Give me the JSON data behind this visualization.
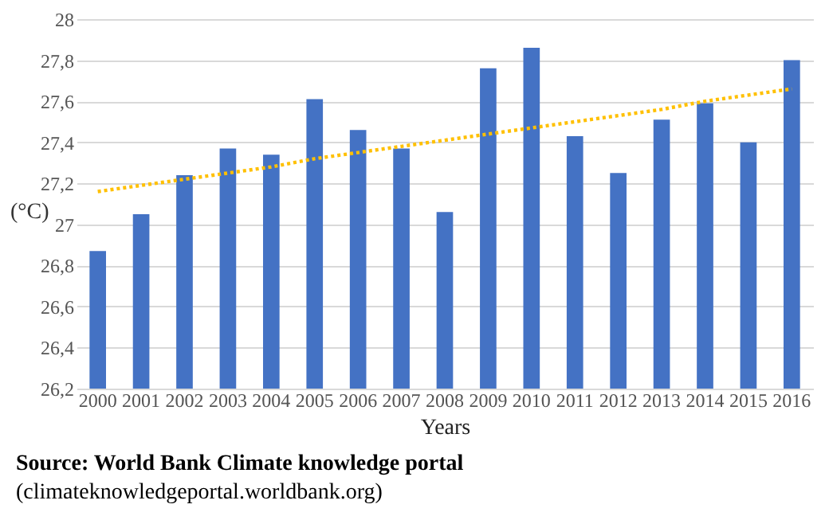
{
  "chart_data": {
    "type": "bar",
    "xlabel": "Years",
    "ylabel": "(°C)",
    "categories": [
      "2000",
      "2001",
      "2002",
      "2003",
      "2004",
      "2005",
      "2006",
      "2007",
      "2008",
      "2009",
      "2010",
      "2011",
      "2012",
      "2013",
      "2014",
      "2015",
      "2016"
    ],
    "series": [
      {
        "color": "#4472c4",
        "values": [
          26.87,
          27.05,
          27.24,
          27.37,
          27.34,
          27.61,
          27.46,
          27.37,
          27.06,
          27.76,
          27.86,
          27.43,
          27.25,
          27.51,
          27.59,
          27.4,
          27.8
        ]
      },
      {
        "type": "line",
        "color": "#ffc000",
        "line_style": "dotted",
        "values": [
          27.16,
          27.19,
          27.22,
          27.25,
          27.28,
          27.32,
          27.35,
          27.38,
          27.41,
          27.44,
          27.47,
          27.5,
          27.53,
          27.56,
          27.6,
          27.63,
          27.66
        ]
      }
    ],
    "ylim": [
      26.2,
      28
    ],
    "yticks": [
      {
        "value": 26.2,
        "label": "26,2"
      },
      {
        "value": 26.4,
        "label": "26,4"
      },
      {
        "value": 26.6,
        "label": "26,6"
      },
      {
        "value": 26.8,
        "label": "26,8"
      },
      {
        "value": 27,
        "label": "27"
      },
      {
        "value": 27.2,
        "label": "27,2"
      },
      {
        "value": 27.4,
        "label": "27,4"
      },
      {
        "value": 27.6,
        "label": "27,6"
      },
      {
        "value": 27.8,
        "label": "27,8"
      },
      {
        "value": 28,
        "label": "28"
      }
    ],
    "grid": "y",
    "annotations": [
      "Source: World Bank Climate knowledge portal",
      "(climateknowledgeportal.worldbank.org)"
    ]
  }
}
